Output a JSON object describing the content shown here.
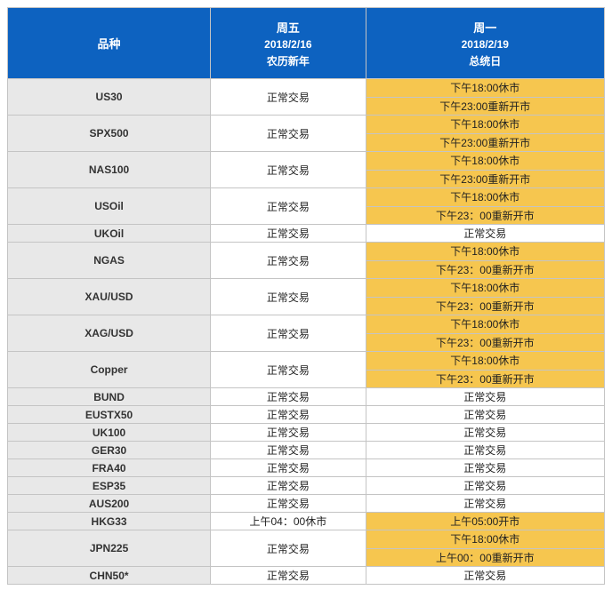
{
  "header": {
    "col1": {
      "line1": "品种"
    },
    "col2": {
      "line1": "周五",
      "line2": "2018/2/16",
      "line3": "农历新年"
    },
    "col3": {
      "line1": "周一",
      "line2": "2018/2/19",
      "line3": "总统日"
    }
  },
  "colors": {
    "header_bg": "#0d62c0",
    "header_fg": "#ffffff",
    "highlight_bg": "#f6c64f",
    "row_alt_bg": "#e8e8e8",
    "border": "#c4c4c4"
  },
  "rows": [
    {
      "symbol": "US30",
      "fri": "正常交易",
      "mon": [
        "下午18:00休市",
        "下午23:00重新开市"
      ],
      "monHl": true,
      "friHl": false
    },
    {
      "symbol": "SPX500",
      "fri": "正常交易",
      "mon": [
        "下午18:00休市",
        "下午23:00重新开市"
      ],
      "monHl": true,
      "friHl": false
    },
    {
      "symbol": "NAS100",
      "fri": "正常交易",
      "mon": [
        "下午18:00休市",
        "下午23:00重新开市"
      ],
      "monHl": true,
      "friHl": false
    },
    {
      "symbol": "USOil",
      "fri": "正常交易",
      "mon": [
        "下午18:00休市",
        "下午23：00重新开市"
      ],
      "monHl": true,
      "friHl": false
    },
    {
      "symbol": "UKOil",
      "fri": "正常交易",
      "mon": "正常交易",
      "monHl": false,
      "friHl": false
    },
    {
      "symbol": "NGAS",
      "fri": "正常交易",
      "mon": [
        "下午18:00休市",
        "下午23：00重新开市"
      ],
      "monHl": true,
      "friHl": false
    },
    {
      "symbol": "XAU/USD",
      "fri": "正常交易",
      "mon": [
        "下午18:00休市",
        "下午23：00重新开市"
      ],
      "monHl": true,
      "friHl": false
    },
    {
      "symbol": "XAG/USD",
      "fri": "正常交易",
      "mon": [
        "下午18:00休市",
        "下午23：00重新开市"
      ],
      "monHl": true,
      "friHl": false
    },
    {
      "symbol": "Copper",
      "fri": "正常交易",
      "mon": [
        "下午18:00休市",
        "下午23：00重新开市"
      ],
      "monHl": true,
      "friHl": false
    },
    {
      "symbol": "BUND",
      "fri": "正常交易",
      "mon": "正常交易",
      "monHl": false,
      "friHl": false
    },
    {
      "symbol": "EUSTX50",
      "fri": "正常交易",
      "mon": "正常交易",
      "monHl": false,
      "friHl": false
    },
    {
      "symbol": "UK100",
      "fri": "正常交易",
      "mon": "正常交易",
      "monHl": false,
      "friHl": false
    },
    {
      "symbol": "GER30",
      "fri": "正常交易",
      "mon": "正常交易",
      "monHl": false,
      "friHl": false
    },
    {
      "symbol": "FRA40",
      "fri": "正常交易",
      "mon": "正常交易",
      "monHl": false,
      "friHl": false
    },
    {
      "symbol": "ESP35",
      "fri": "正常交易",
      "mon": "正常交易",
      "monHl": false,
      "friHl": false
    },
    {
      "symbol": "AUS200",
      "fri": "正常交易",
      "mon": "正常交易",
      "monHl": false,
      "friHl": false
    },
    {
      "symbol": "HKG33",
      "fri": "上午04：00休市",
      "mon": "上午05:00开市",
      "monHl": true,
      "friHl": true
    },
    {
      "symbol": "JPN225",
      "fri": "正常交易",
      "mon": [
        "下午18:00休市",
        "上午00：00重新开市"
      ],
      "monHl": true,
      "friHl": false
    },
    {
      "symbol": "CHN50*",
      "fri": "正常交易",
      "mon": "正常交易",
      "monHl": false,
      "friHl": false
    }
  ]
}
